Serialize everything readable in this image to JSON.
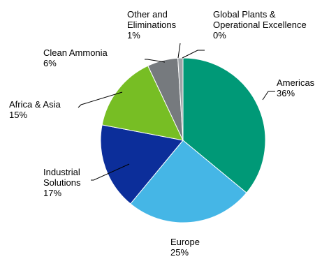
{
  "chart_data": {
    "type": "pie",
    "title": "",
    "slices": [
      {
        "label": "Americas",
        "value": 36,
        "value_label": "36%",
        "color": "#009977"
      },
      {
        "label": "Europe",
        "value": 25,
        "value_label": "25%",
        "color": "#45B6E6"
      },
      {
        "label": "Industrial Solutions",
        "value": 17,
        "value_label": "17%",
        "color": "#0C2E9A"
      },
      {
        "label": "Africa & Asia",
        "value": 15,
        "value_label": "15%",
        "color": "#77BE24"
      },
      {
        "label": "Clean Ammonia",
        "value": 6,
        "value_label": "6%",
        "color": "#767A7E"
      },
      {
        "label": "Other and Eliminations",
        "value": 1,
        "value_label": "1%",
        "color": "#9EA3A7"
      },
      {
        "label": "Global Plants & Operational Excellence",
        "value": 0,
        "value_label": "0%",
        "color": "#009977"
      }
    ],
    "legend": "none",
    "labels": "outside with leader lines"
  }
}
